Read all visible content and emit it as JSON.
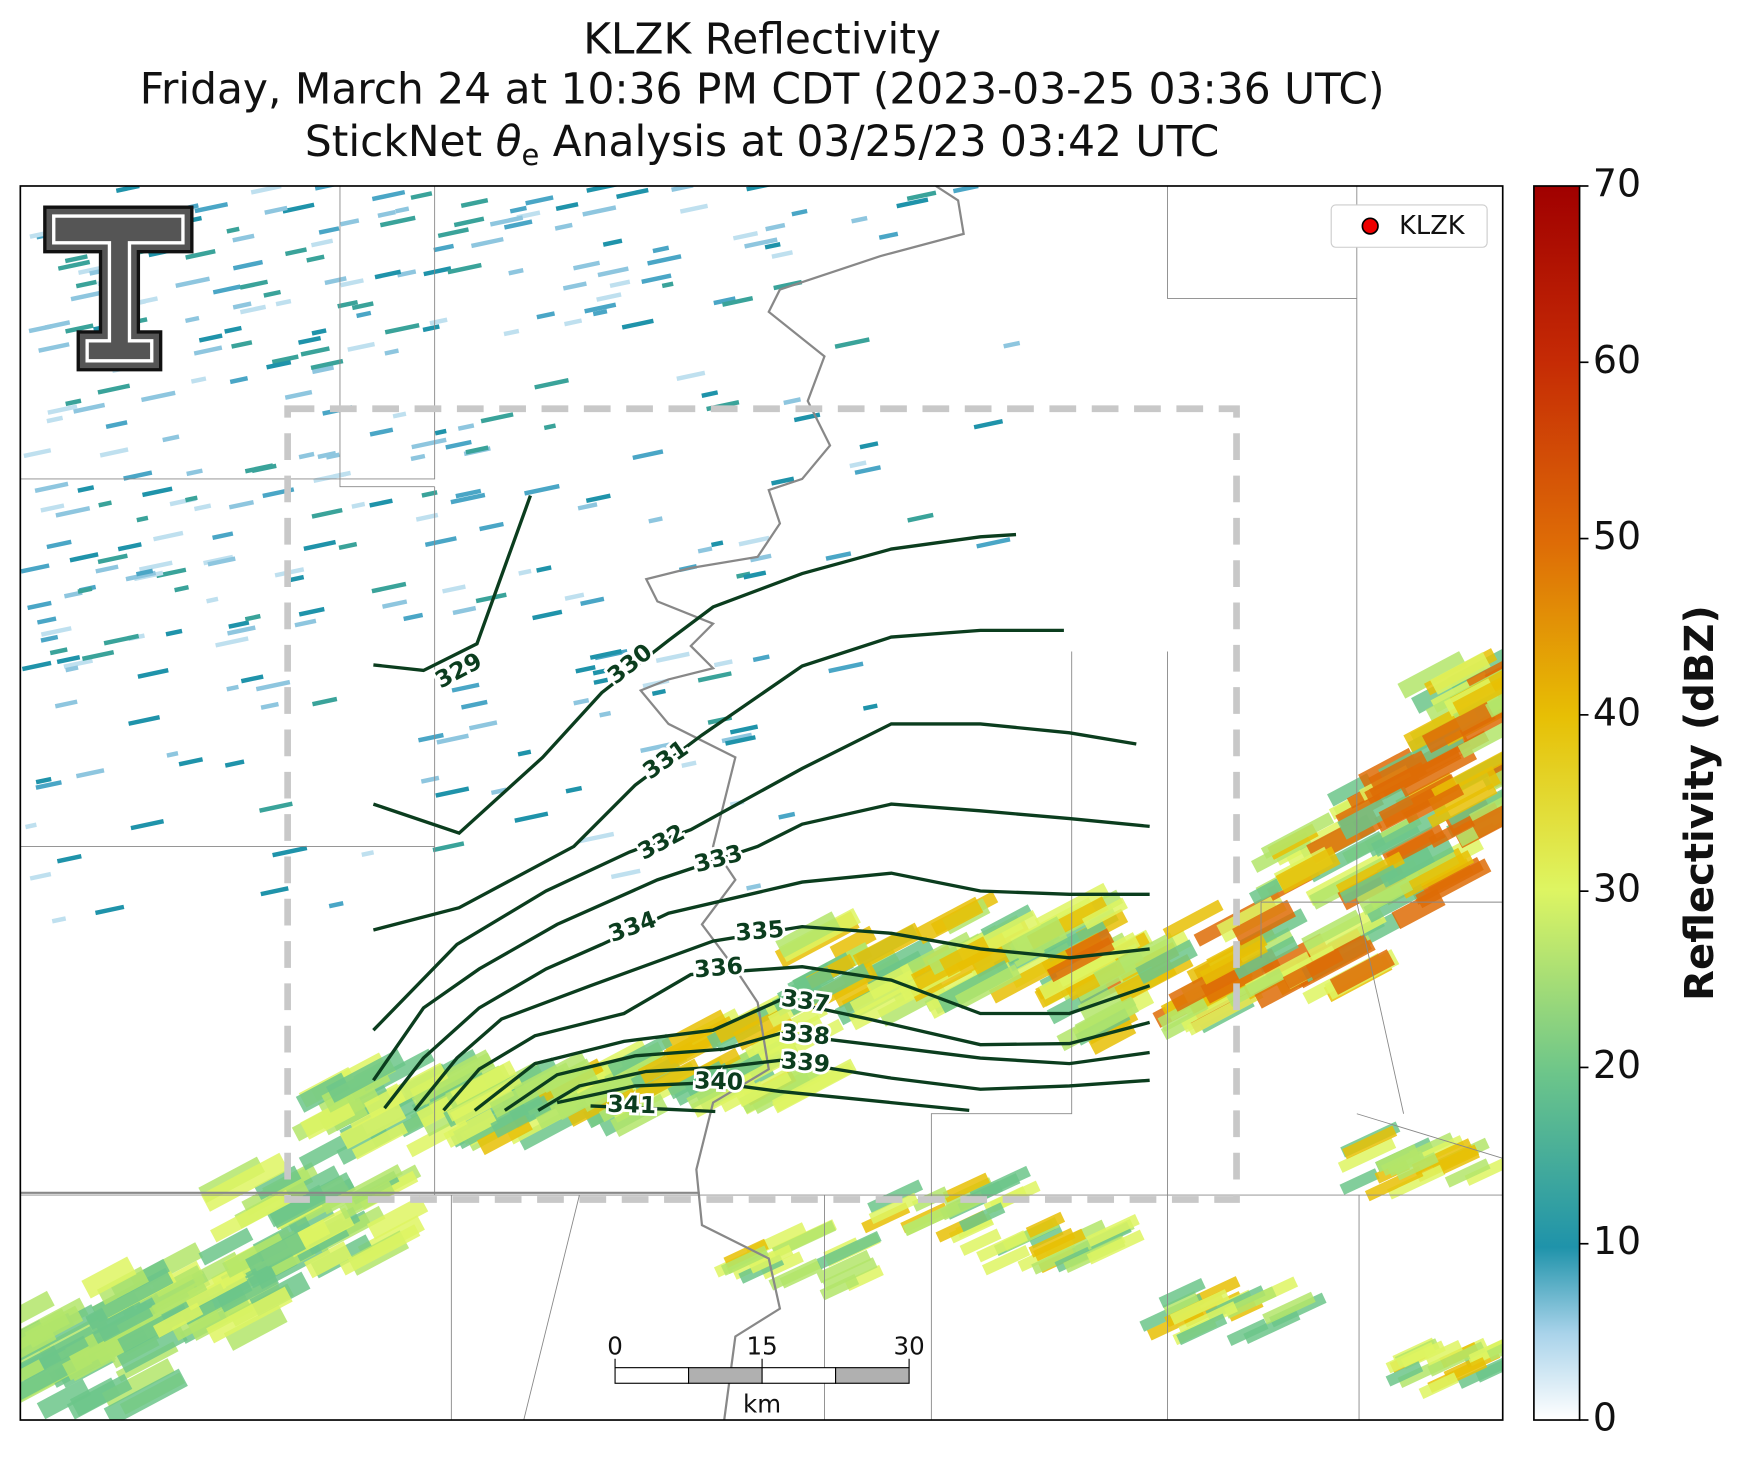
{
  "title": {
    "line1": "KLZK Reflectivity",
    "line2": "Friday, March 24 at 10:36 PM CDT (2023-03-25 03:36 UTC)",
    "line3": {
      "before": "StickNet ",
      "symbol": "θ",
      "subscript": "e",
      "after": " Analysis at 03/25/23 03:42 UTC"
    }
  },
  "legend": {
    "label": "KLZK"
  },
  "contours": {
    "levels": [
      329,
      330,
      331,
      332,
      333,
      334,
      335,
      336,
      337,
      338,
      339,
      340,
      341
    ]
  },
  "colorbar": {
    "label": "Reflectivity (dBZ)",
    "lim": [
      0,
      70
    ],
    "ticks": [
      0,
      10,
      20,
      30,
      40,
      50,
      60,
      70
    ]
  },
  "scale_bar": {
    "ticks": [
      0,
      15,
      30
    ],
    "unit": "km"
  }
}
